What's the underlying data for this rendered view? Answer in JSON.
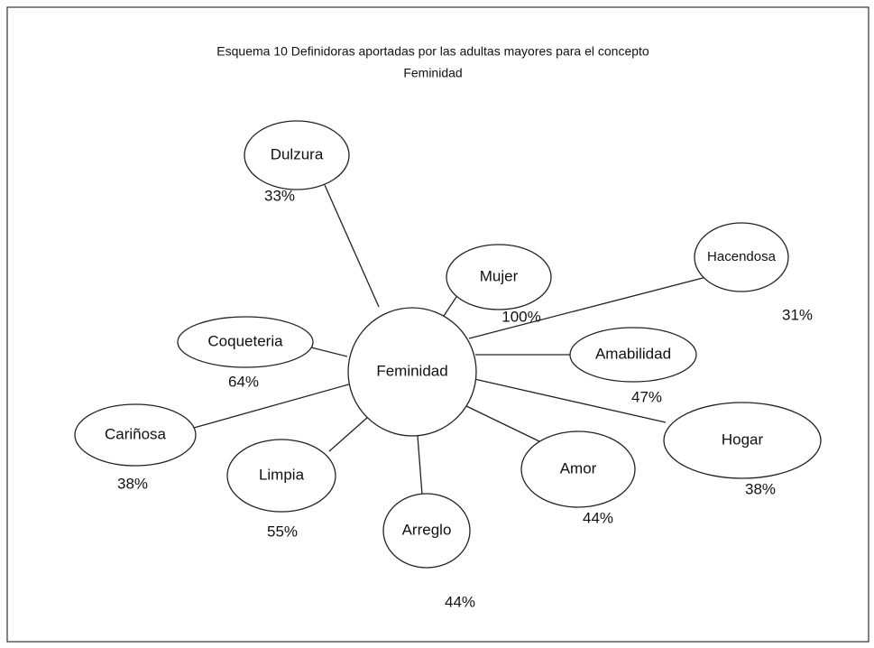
{
  "title": [
    "Esquema 10  Definidoras aportadas por las adultas mayores para el concepto",
    "Feminidad"
  ],
  "center": {
    "label": "Feminidad"
  },
  "nodes": [
    {
      "label": "Dulzura",
      "percent": "33%"
    },
    {
      "label": "Mujer",
      "percent": "100%"
    },
    {
      "label": "Hacendosa",
      "percent": "31%"
    },
    {
      "label": "Coqueteria",
      "percent": "64%"
    },
    {
      "label": "Amabilidad",
      "percent": "47%"
    },
    {
      "label": "Cariñosa",
      "percent": "38%"
    },
    {
      "label": "Limpia",
      "percent": "55%"
    },
    {
      "label": "Arreglo",
      "percent": "44%"
    },
    {
      "label": "Amor",
      "percent": "44%"
    },
    {
      "label": "Hogar",
      "percent": "38%"
    }
  ]
}
